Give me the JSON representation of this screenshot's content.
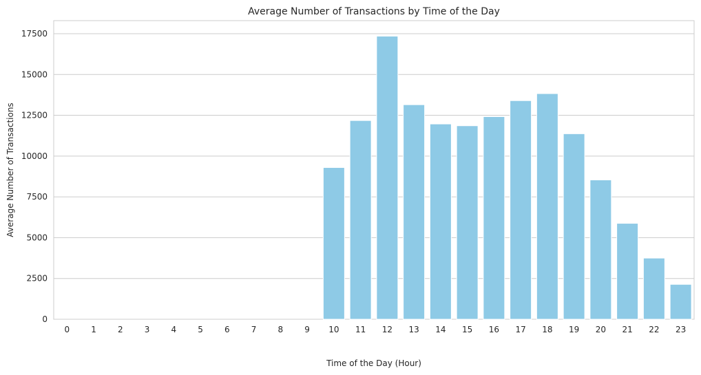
{
  "chart_data": {
    "type": "bar",
    "title": "Average Number of Transactions by Time of the Day",
    "xlabel": "Time of the Day (Hour)",
    "ylabel": "Average Number of Transactions",
    "categories": [
      "0",
      "1",
      "2",
      "3",
      "4",
      "5",
      "6",
      "7",
      "8",
      "9",
      "10",
      "11",
      "12",
      "13",
      "14",
      "15",
      "16",
      "17",
      "18",
      "19",
      "20",
      "21",
      "22",
      "23"
    ],
    "values": [
      0,
      0,
      0,
      0,
      0,
      0,
      0,
      0,
      0,
      0,
      9300,
      12180,
      17350,
      13150,
      11970,
      11860,
      12420,
      13400,
      13830,
      11370,
      8540,
      5880,
      3750,
      2140
    ],
    "ylim": [
      0,
      18300
    ],
    "yticks": [
      0,
      2500,
      5000,
      7500,
      10000,
      12500,
      15000,
      17500
    ],
    "grid": true,
    "bar_color": "#8ecae6",
    "legend": "none"
  }
}
